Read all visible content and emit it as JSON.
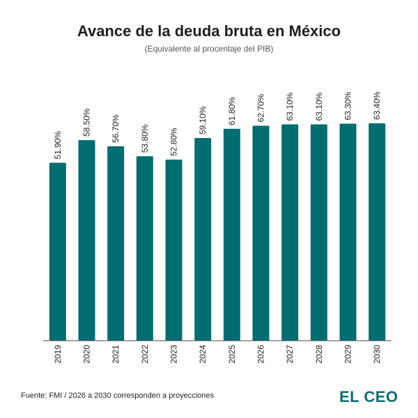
{
  "title": "Avance de la deuda bruta en México",
  "subtitle": "(Equivalente al procentaje del PIB)",
  "footer": {
    "source": "Fuente: FMI / 2026 a 2030 corresponden a proyecciones"
  },
  "logo": {
    "text": "EL CEO",
    "color": "#0d6b70"
  },
  "colors": {
    "bar": "#006d70",
    "axis": "#444444"
  },
  "chart_data": {
    "type": "bar",
    "title": "Avance de la deuda bruta en México",
    "subtitle": "(Equivalente al procentaje del PIB)",
    "xlabel": "",
    "ylabel": "",
    "categories": [
      "2019",
      "2020",
      "2021",
      "2022",
      "2023",
      "2024",
      "2025",
      "2026",
      "2027",
      "2028",
      "2029",
      "2030"
    ],
    "values": [
      51.9,
      58.5,
      56.7,
      53.8,
      52.8,
      59.1,
      61.8,
      62.7,
      63.1,
      63.1,
      63.3,
      63.4
    ],
    "data_labels": [
      "51.90%",
      "58.50%",
      "56.70%",
      "53.80%",
      "52.80%",
      "59.10%",
      "61.80%",
      "62.70%",
      "63.10%",
      "63.10%",
      "63.30%",
      "63.40%"
    ],
    "ylim": [
      0,
      63.4
    ],
    "grid": false,
    "legend": "none"
  }
}
